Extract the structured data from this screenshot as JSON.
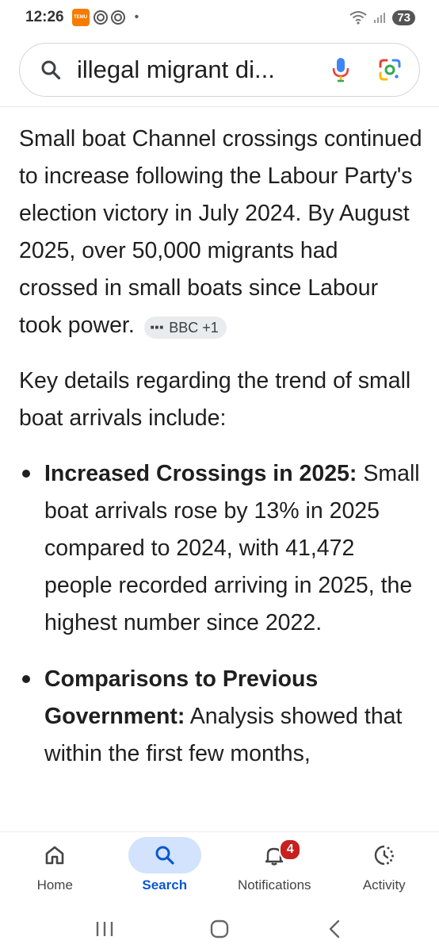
{
  "status_bar": {
    "time": "12:26",
    "temu_text": "TEMU",
    "dot": "•",
    "battery": "73"
  },
  "search": {
    "query": "illegal migrant di..."
  },
  "content": {
    "paragraph1": "Small boat Channel crossings continued to increase following the Labour Party's election victory in July 2024. By August 2025, over 50,000 migrants had crossed in small boats since Labour took power.",
    "citation": "BBC +1",
    "paragraph2": "Key details regarding the trend of small boat arrivals include:",
    "bullets": [
      {
        "title": "Increased Crossings in 2025:",
        "text": " Small boat arrivals rose by 13% in 2025 compared to 2024, with 41,472 people recorded arriving in 2025, the highest number since 2022."
      },
      {
        "title": "Comparisons to Previous Government:",
        "text": " Analysis showed that within the first few months,"
      }
    ]
  },
  "bottom_nav": {
    "items": [
      {
        "label": "Home",
        "icon": "home-icon"
      },
      {
        "label": "Search",
        "icon": "search-icon"
      },
      {
        "label": "Notifications",
        "icon": "bell-icon",
        "badge": "4"
      },
      {
        "label": "Activity",
        "icon": "activity-icon"
      }
    ],
    "active": "Search"
  },
  "colors": {
    "accent": "#0b57d0",
    "active_pill": "#d3e3fd",
    "badge": "#c5221f"
  }
}
